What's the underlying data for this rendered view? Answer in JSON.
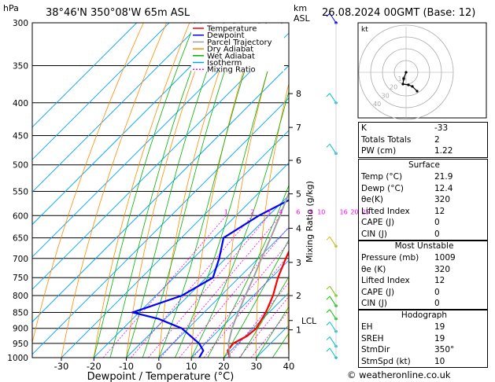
{
  "header": {
    "units_left": "hPa",
    "location": "38°46'N  350°08'W  65m  ASL",
    "units_right": "km\nASL",
    "km": "km",
    "asl": "ASL",
    "datetime": "26.08.2024  00GMT  (Base: 12)"
  },
  "chart_data": {
    "type": "line",
    "title": "38°46'N  350°08'W  65m  ASL",
    "xlabel": "Dewpoint / Temperature (°C)",
    "ylabel": "hPa",
    "y2label": "Mixing Ratio (g/kg)",
    "x_ticks": [
      -30,
      -20,
      -10,
      0,
      10,
      20,
      30,
      40
    ],
    "pressure_levels": [
      300,
      350,
      400,
      450,
      500,
      550,
      600,
      650,
      700,
      750,
      800,
      850,
      900,
      950,
      1000
    ],
    "km_ticks": [
      {
        "km": "8",
        "p": 387
      },
      {
        "km": "7",
        "p": 437
      },
      {
        "km": "6",
        "p": 492
      },
      {
        "km": "5",
        "p": 555
      },
      {
        "km": "4",
        "p": 628
      },
      {
        "km": "3",
        "p": 710
      },
      {
        "km": "2",
        "p": 800
      },
      {
        "km": "1",
        "p": 905
      }
    ],
    "lcl": {
      "label": "LCL",
      "p": 875
    },
    "mixing_ratio_labels": [
      "1",
      "2",
      "3",
      "4",
      "6",
      "8",
      "10",
      "16",
      "20",
      "25"
    ],
    "mixing_ratios": [
      1,
      2,
      3,
      4,
      6,
      8,
      10,
      16,
      20,
      25
    ],
    "legend": [
      "Temperature",
      "Dewpoint",
      "Parcel Trajectory",
      "Dry Adiabat",
      "Wet Adiabat",
      "Isotherm",
      "Mixing Ratio"
    ],
    "series": [
      {
        "name": "Temperature",
        "color": "#ff0000",
        "points": [
          [
            1000,
            21.9
          ],
          [
            975,
            19.0
          ],
          [
            950,
            18.5
          ],
          [
            925,
            20.5
          ],
          [
            900,
            21.0
          ],
          [
            850,
            19.0
          ],
          [
            800,
            16.0
          ],
          [
            750,
            12.0
          ],
          [
            700,
            8.5
          ],
          [
            650,
            5.0
          ],
          [
            600,
            1.0
          ],
          [
            550,
            -3.5
          ],
          [
            500,
            -8.5
          ],
          [
            450,
            -14.0
          ],
          [
            400,
            -21.0
          ],
          [
            350,
            -29.0
          ],
          [
            300,
            -38.5
          ]
        ]
      },
      {
        "name": "Dewpoint",
        "color": "#0000ff",
        "points": [
          [
            1000,
            12.4
          ],
          [
            975,
            11.5
          ],
          [
            950,
            8.0
          ],
          [
            900,
            -2.0
          ],
          [
            870,
            -12.0
          ],
          [
            850,
            -22.0
          ],
          [
            800,
            -12.0
          ],
          [
            750,
            -8.0
          ],
          [
            700,
            -12.0
          ],
          [
            650,
            -17.0
          ],
          [
            600,
            -13.0
          ],
          [
            550,
            -6.0
          ],
          [
            500,
            -11.0
          ],
          [
            450,
            -19.0
          ],
          [
            400,
            -26.0
          ],
          [
            350,
            -33.0
          ],
          [
            300,
            -41.0
          ]
        ]
      },
      {
        "name": "Parcel Trajectory",
        "color": "#a0a0a0",
        "points": [
          [
            1000,
            21.9
          ],
          [
            950,
            17.0
          ],
          [
            900,
            13.5
          ],
          [
            875,
            12.0
          ],
          [
            850,
            10.5
          ],
          [
            800,
            7.5
          ],
          [
            750,
            4.5
          ],
          [
            700,
            1.0
          ],
          [
            650,
            -2.5
          ],
          [
            600,
            -6.5
          ],
          [
            550,
            -11.0
          ],
          [
            500,
            -16.0
          ],
          [
            450,
            -21.5
          ],
          [
            400,
            -28.0
          ],
          [
            350,
            -35.5
          ],
          [
            300,
            -44.5
          ]
        ]
      }
    ],
    "wind_barbs": [
      {
        "p": 300,
        "color": "#0000ff"
      },
      {
        "p": 400,
        "color": "#00c0c0"
      },
      {
        "p": 480,
        "color": "#00c0c0"
      },
      {
        "p": 670,
        "color": "#c0c000"
      },
      {
        "p": 800,
        "color": "#80c000"
      },
      {
        "p": 830,
        "color": "#00c000"
      },
      {
        "p": 870,
        "color": "#00c000"
      },
      {
        "p": 910,
        "color": "#00c0c0"
      },
      {
        "p": 960,
        "color": "#00c0c0"
      },
      {
        "p": 1000,
        "color": "#00c0c0"
      }
    ],
    "colors": {
      "temperature": "#ff0000",
      "dewpoint": "#0000ff",
      "parcel": "#a0a0a0",
      "dry_adiabat": "#ff8c00",
      "wet_adiabat": "#00b000",
      "isotherm": "#00a0ff",
      "mixing_ratio": "#ff00ff"
    }
  },
  "hodograph": {
    "label": "kt",
    "ring_labels": [
      "10",
      "20",
      "30",
      "40"
    ],
    "points": [
      [
        0,
        0
      ],
      [
        -3,
        -8
      ],
      [
        -4,
        -15
      ],
      [
        3,
        -16
      ],
      [
        8,
        -18
      ],
      [
        14,
        -24
      ]
    ]
  },
  "indices": [
    {
      "key": "K",
      "value": "-33"
    },
    {
      "key": "Totals Totals",
      "value": "2"
    },
    {
      "key": "PW (cm)",
      "value": "1.22"
    }
  ],
  "surface": {
    "title": "Surface",
    "rows": [
      {
        "key": "Temp (°C)",
        "value": "21.9"
      },
      {
        "key": "Dewp (°C)",
        "value": "12.4"
      },
      {
        "key": "θe(K)",
        "value": "320"
      },
      {
        "key": "Lifted Index",
        "value": "12"
      },
      {
        "key": "CAPE (J)",
        "value": "0"
      },
      {
        "key": "CIN (J)",
        "value": "0"
      }
    ]
  },
  "most_unstable": {
    "title": "Most Unstable",
    "rows": [
      {
        "key": "Pressure (mb)",
        "value": "1009"
      },
      {
        "key": "θe (K)",
        "value": "320"
      },
      {
        "key": "Lifted Index",
        "value": "12"
      },
      {
        "key": "CAPE (J)",
        "value": "0"
      },
      {
        "key": "CIN (J)",
        "value": "0"
      }
    ]
  },
  "hodograph_table": {
    "title": "Hodograph",
    "rows": [
      {
        "key": "EH",
        "value": "19"
      },
      {
        "key": "SREH",
        "value": "19"
      },
      {
        "key": "StmDir",
        "value": "350°"
      },
      {
        "key": "StmSpd (kt)",
        "value": "10"
      }
    ]
  },
  "watermark": "© weatheronline.co.uk"
}
